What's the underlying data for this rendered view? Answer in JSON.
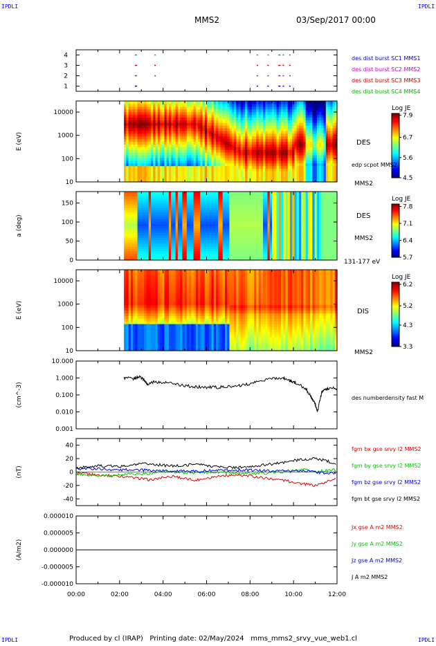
{
  "corner_label": "IPDLI",
  "header": {
    "spacecraft": "MMS2",
    "datetime": "03/Sep/2017 00:00"
  },
  "footer": {
    "produced_by": "Produced by cl (IRAP)",
    "printing_date": "Printing date: 02/May/2024",
    "filename": "mms_mms2_srvy_vue_web1.cl"
  },
  "chart_data": [
    {
      "type": "timeline",
      "id": "burst",
      "yticks": [
        "1",
        "2",
        "3",
        "4"
      ],
      "ylim": [
        0.5,
        4.5
      ],
      "series": [
        {
          "name": "des dist burst SC1 MMS1",
          "level": 1,
          "color": "#0000c8",
          "intervals_hours": [
            [
              2.7,
              2.8
            ],
            [
              8.3,
              8.35
            ],
            [
              8.8,
              8.85
            ],
            [
              9.3,
              9.4
            ],
            [
              9.5,
              9.55
            ],
            [
              9.8,
              9.85
            ]
          ]
        },
        {
          "name": "des dist burst SC2 MMS2",
          "level": 2,
          "color": "#c800c8",
          "intervals_hours": [
            [
              2.7,
              2.8
            ],
            [
              3.6,
              3.65
            ],
            [
              8.3,
              8.35
            ],
            [
              8.8,
              8.85
            ],
            [
              9.3,
              9.4
            ],
            [
              9.5,
              9.55
            ],
            [
              9.8,
              9.85
            ]
          ]
        },
        {
          "name": "des dist burst SC3 MMS3",
          "level": 3,
          "color": "#c80000",
          "intervals_hours": [
            [
              2.7,
              2.8
            ],
            [
              3.6,
              3.65
            ],
            [
              8.3,
              8.35
            ],
            [
              8.8,
              8.85
            ],
            [
              9.3,
              9.4
            ],
            [
              9.5,
              9.55
            ],
            [
              9.8,
              9.85
            ]
          ]
        },
        {
          "name": "des dist burst SC4 MMS4",
          "level": 4,
          "color": "#00b400",
          "intervals_hours": [
            [
              2.7,
              2.8
            ],
            [
              3.6,
              3.65
            ],
            [
              8.3,
              8.35
            ],
            [
              8.8,
              8.85
            ],
            [
              9.3,
              9.4
            ],
            [
              9.5,
              9.55
            ],
            [
              9.8,
              9.85
            ]
          ]
        }
      ]
    },
    {
      "type": "heatmap",
      "id": "des_energy",
      "ylabel": "E (eV)",
      "yscale": "log",
      "ylim": [
        10,
        30000
      ],
      "yticks": [
        "10",
        "100",
        "1000",
        "10000"
      ],
      "data_start_hours": 2.2,
      "right_labels": [
        "DES",
        "edp scpot MMS2",
        "MMS2"
      ],
      "colorbar": {
        "title": "Log JE",
        "min": 4.5,
        "max": 8.0,
        "ticks": [
          "7.9",
          "6.7",
          "5.6",
          "4.5"
        ]
      }
    },
    {
      "type": "heatmap",
      "id": "des_pitch",
      "ylabel": "a (deg)",
      "ylim": [
        0,
        180
      ],
      "yticks": [
        "0",
        "50",
        "100",
        "150"
      ],
      "data_start_hours": 2.2,
      "right_labels": [
        "DES",
        "MMS2",
        "131-177 eV"
      ],
      "colorbar": {
        "title": "Log JE",
        "min": 5.7,
        "max": 7.9,
        "ticks": [
          "7.8",
          "7.1",
          "6.4",
          "5.7"
        ]
      }
    },
    {
      "type": "heatmap",
      "id": "dis_energy",
      "ylabel": "E (eV)",
      "yscale": "log",
      "ylim": [
        10,
        30000
      ],
      "yticks": [
        "10",
        "100",
        "1000",
        "10000"
      ],
      "data_start_hours": 2.2,
      "right_labels": [
        "DIS",
        "MMS2"
      ],
      "colorbar": {
        "title": "Log JE",
        "min": 3.3,
        "max": 6.3,
        "ticks": [
          "6.2",
          "5.2",
          "4.3",
          "3.3"
        ]
      }
    },
    {
      "type": "line",
      "id": "density",
      "ylabel": "(cm^-3)",
      "yscale": "log",
      "ylim": [
        0.001,
        10
      ],
      "yticks": [
        "0.001",
        "0.010",
        "0.100",
        "1.000",
        "10.000"
      ],
      "series": [
        {
          "name": "des numberdensity fast M",
          "color": "#000000",
          "x": [
            2.2,
            2.6,
            2.9,
            3.1,
            3.3,
            3.6,
            4.0,
            4.5,
            5.0,
            5.5,
            6.0,
            6.5,
            7.0,
            7.5,
            8.0,
            8.5,
            9.0,
            9.5,
            9.8,
            10.0,
            10.3,
            10.6,
            10.8,
            11.0,
            11.1,
            11.3,
            11.6,
            12.0
          ],
          "y": [
            1.0,
            0.9,
            1.2,
            0.8,
            0.4,
            0.6,
            0.55,
            0.45,
            0.35,
            0.3,
            0.28,
            0.28,
            0.3,
            0.35,
            0.45,
            0.7,
            0.9,
            1.0,
            0.7,
            0.6,
            0.4,
            0.2,
            0.08,
            0.03,
            0.01,
            0.15,
            0.25,
            0.25
          ]
        }
      ]
    },
    {
      "type": "line",
      "id": "bfield",
      "ylabel": "(nT)",
      "ylim": [
        -50,
        50
      ],
      "yticks": [
        "-40",
        "-20",
        "0",
        "20",
        "40"
      ],
      "x": [
        0,
        0.5,
        1.0,
        1.5,
        2.0,
        2.5,
        3.0,
        3.5,
        4.0,
        4.5,
        5.0,
        5.5,
        6.0,
        6.5,
        7.0,
        7.5,
        8.0,
        8.5,
        9.0,
        9.5,
        10.0,
        10.5,
        11.0,
        11.5,
        12.0
      ],
      "series": [
        {
          "name": "fgm bx gse srvy l2 MMS2",
          "color": "#e00000",
          "values": [
            -2,
            -3,
            -4,
            -5,
            -6,
            -8,
            -10,
            -12,
            -8,
            -6,
            -10,
            -12,
            -9,
            -6,
            -5,
            -5,
            -6,
            -8,
            -10,
            -12,
            -15,
            -18,
            -20,
            -15,
            -8
          ]
        },
        {
          "name": "fgm by gse srvy l2 MMS2",
          "color": "#00c800",
          "values": [
            -3,
            -4,
            -5,
            -6,
            -4,
            -2,
            -3,
            -2,
            0,
            0,
            -1,
            -1,
            0,
            0,
            -1,
            -2,
            -2,
            -2,
            -1,
            0,
            2,
            3,
            1,
            2,
            4
          ]
        },
        {
          "name": "fgm bz gse srvy l2 MMS2",
          "color": "#0000e0",
          "values": [
            4,
            5,
            5,
            4,
            3,
            4,
            3,
            2,
            2,
            1,
            1,
            1,
            2,
            2,
            2,
            3,
            3,
            2,
            2,
            2,
            1,
            2,
            0,
            -2,
            -2
          ]
        },
        {
          "name": "fgm bt gse srvy l2 MMS2",
          "color": "#000000",
          "values": [
            6,
            8,
            9,
            9,
            8,
            10,
            12,
            12,
            10,
            9,
            10,
            12,
            10,
            8,
            7,
            7,
            8,
            10,
            12,
            14,
            17,
            19,
            20,
            17,
            12
          ]
        }
      ]
    },
    {
      "type": "line",
      "id": "current",
      "ylabel": "(A/m2)",
      "ylim": [
        -1e-05,
        1e-05
      ],
      "yticks": [
        "-0.000010",
        "-0.000005",
        "0.000000",
        "0.000005",
        "0.000010"
      ],
      "x": [
        0,
        12
      ],
      "series": [
        {
          "name": "Jx gse A m2 MMS2",
          "color": "#e00000",
          "values": [
            0,
            0
          ]
        },
        {
          "name": "Jy gse A m2 MMS2",
          "color": "#00c800",
          "values": [
            0,
            0
          ]
        },
        {
          "name": "Jz gse A m2 MMS2",
          "color": "#0000e0",
          "values": [
            0,
            0
          ]
        },
        {
          "name": "J A m2 MMS2",
          "color": "#000000",
          "values": [
            0,
            0
          ]
        }
      ]
    }
  ],
  "time_axis": {
    "ticks": [
      "00:00",
      "02:00",
      "04:00",
      "06:00",
      "08:00",
      "10:00",
      "12:00"
    ],
    "range_hours": [
      0,
      12
    ]
  }
}
